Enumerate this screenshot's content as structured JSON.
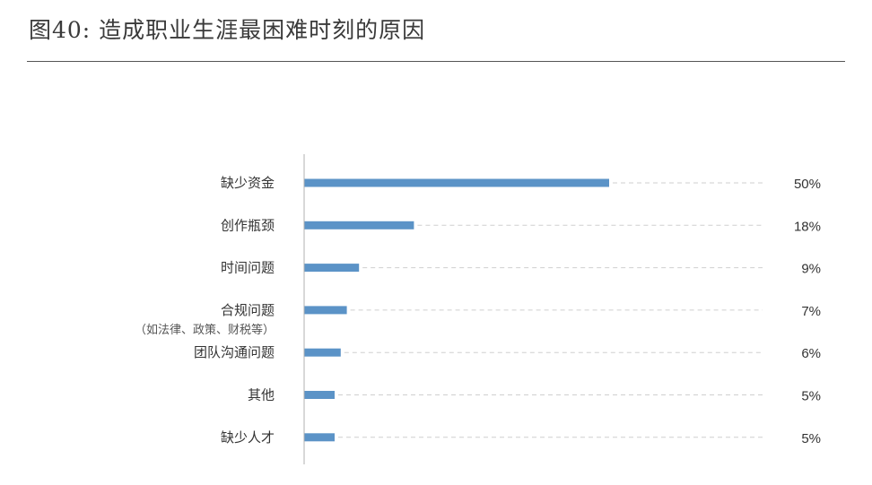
{
  "title": "图40: 造成职业生涯最困难时刻的原因",
  "chart_data": {
    "type": "bar",
    "orientation": "horizontal",
    "categories": [
      "缺少资金",
      "创作瓶颈",
      "时间问题",
      "合规问题",
      "团队沟通问题",
      "其他",
      "缺少人才"
    ],
    "category_notes": [
      "",
      "",
      "",
      "（如法律、政策、财税等）",
      "",
      "",
      ""
    ],
    "values": [
      50,
      18,
      9,
      7,
      6,
      5,
      5
    ],
    "value_labels": [
      "50%",
      "18%",
      "9%",
      "7%",
      "6%",
      "5%",
      "5%"
    ],
    "xlim": [
      0,
      50
    ],
    "bar_color": "#5b93c7",
    "guide_line_color": "#cfcfcf",
    "grid": false,
    "legend": "none"
  }
}
